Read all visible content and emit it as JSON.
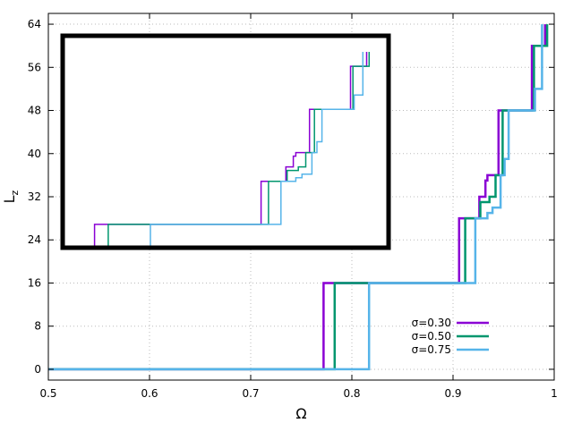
{
  "chart_data": {
    "type": "line",
    "step": true,
    "xlabel": "Ω",
    "ylabel": "L",
    "ylabel_sub": "z",
    "xlim": [
      0.5,
      1.0
    ],
    "ylim": [
      -2,
      66
    ],
    "x_ticks": [
      "0.5",
      "0.6",
      "0.7",
      "0.8",
      "0.9",
      "1"
    ],
    "y_ticks": [
      "0",
      "8",
      "16",
      "24",
      "32",
      "40",
      "48",
      "56",
      "64"
    ],
    "grid": true,
    "legend_position": "lower-right",
    "series": [
      {
        "name": "σ=0.30",
        "color": "#8a00d4",
        "x": [
          0.5,
          0.772,
          0.772,
          0.906,
          0.906,
          0.926,
          0.926,
          0.932,
          0.932,
          0.934,
          0.934,
          0.945,
          0.945,
          0.978,
          0.978,
          0.991,
          0.991
        ],
        "y": [
          0,
          0,
          16,
          16,
          28,
          28,
          32,
          32,
          35,
          35,
          36,
          36,
          48,
          48,
          60,
          60,
          64
        ]
      },
      {
        "name": "σ=0.50",
        "color": "#00966e",
        "x": [
          0.5,
          0.783,
          0.783,
          0.912,
          0.912,
          0.927,
          0.927,
          0.936,
          0.936,
          0.942,
          0.942,
          0.949,
          0.949,
          0.98,
          0.98,
          0.993,
          0.993
        ],
        "y": [
          0,
          0,
          16,
          16,
          28,
          28,
          31,
          31,
          32,
          32,
          36,
          36,
          48,
          48,
          60,
          60,
          64
        ]
      },
      {
        "name": "σ=0.75",
        "color": "#56b4e9",
        "x": [
          0.5,
          0.817,
          0.817,
          0.922,
          0.922,
          0.934,
          0.934,
          0.939,
          0.939,
          0.947,
          0.947,
          0.951,
          0.951,
          0.955,
          0.955,
          0.981,
          0.981,
          0.988,
          0.988
        ],
        "y": [
          0,
          0,
          16,
          16,
          28,
          28,
          29,
          29,
          30,
          30,
          36,
          36,
          39,
          39,
          48,
          48,
          52,
          52,
          64
        ]
      }
    ],
    "inset": {
      "xlim": [
        0.5,
        1.0
      ],
      "ylim": [
        -2,
        66
      ],
      "border": true,
      "axis_labels_shown": false
    }
  }
}
